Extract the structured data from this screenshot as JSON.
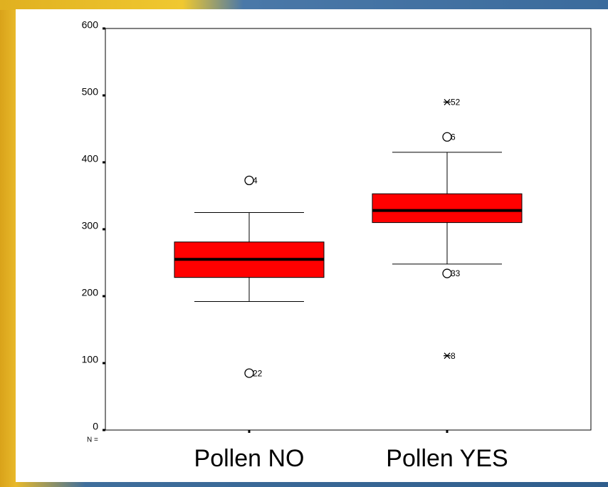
{
  "chart_data": {
    "type": "box",
    "categories": [
      "Pollen NO",
      "Pollen YES"
    ],
    "n_label": "N =",
    "color": "#ff0000",
    "median_color": "#000000",
    "ylim": [
      0,
      600
    ],
    "yticks": [
      0,
      100,
      200,
      300,
      400,
      500,
      600
    ],
    "boxes": [
      {
        "whisker_low": 192,
        "q1": 228,
        "median": 255,
        "q3": 281,
        "whisker_high": 325,
        "outliers": [
          {
            "value": 373,
            "case": 4
          },
          {
            "value": 85,
            "case": 22
          }
        ],
        "extremes": []
      },
      {
        "whisker_low": 248,
        "q1": 310,
        "median": 328,
        "q3": 353,
        "whisker_high": 415,
        "outliers": [
          {
            "value": 438,
            "case": 6
          },
          {
            "value": 234,
            "case": 33
          }
        ],
        "extremes": [
          {
            "value": 490,
            "case": 52
          },
          {
            "value": 111,
            "case": 8
          }
        ]
      }
    ]
  }
}
